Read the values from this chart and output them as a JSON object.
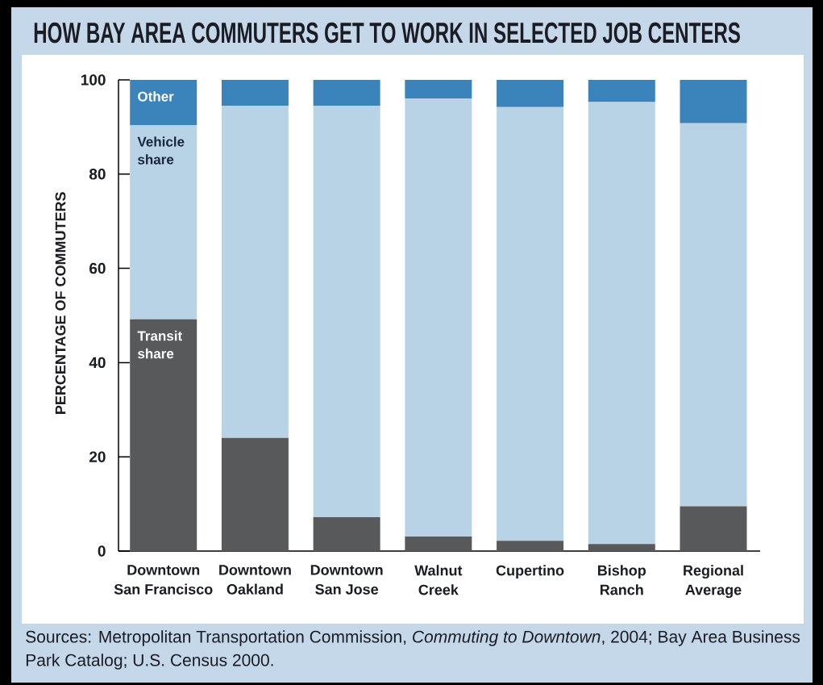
{
  "chart_data": {
    "type": "bar",
    "stacked": true,
    "title": "HOW BAY AREA COMMUTERS GET TO WORK IN SELECTED JOB CENTERS",
    "ylabel": "PERCENTAGE OF COMMUTERS",
    "categories": [
      "Downtown San Francisco",
      "Downtown Oakland",
      "Downtown San Jose",
      "Walnut Creek",
      "Cupertino",
      "Bishop Ranch",
      "Regional Average"
    ],
    "series": [
      {
        "name": "Transit share",
        "color": "#58595b",
        "values": [
          49.2,
          24,
          7.2,
          3.1,
          2.2,
          1.5,
          9.5
        ]
      },
      {
        "name": "Vehicle share",
        "color": "#b8d3e6",
        "values": [
          41.2,
          70.5,
          87.3,
          92.9,
          92,
          93.8,
          81.3
        ]
      },
      {
        "name": "Other",
        "color": "#3b84bb",
        "values": [
          9.6,
          5.5,
          5.5,
          4,
          5.8,
          4.7,
          9.2
        ]
      }
    ],
    "ylim": [
      0,
      100
    ],
    "yticks": [
      0,
      20,
      40,
      60,
      80,
      100
    ],
    "annotations": [
      "Sources: Metropolitan Transportation Commission, *Commuting to Downtown*, 2004; Bay Area Business Park Catalog; U.S. Census 2000."
    ]
  }
}
